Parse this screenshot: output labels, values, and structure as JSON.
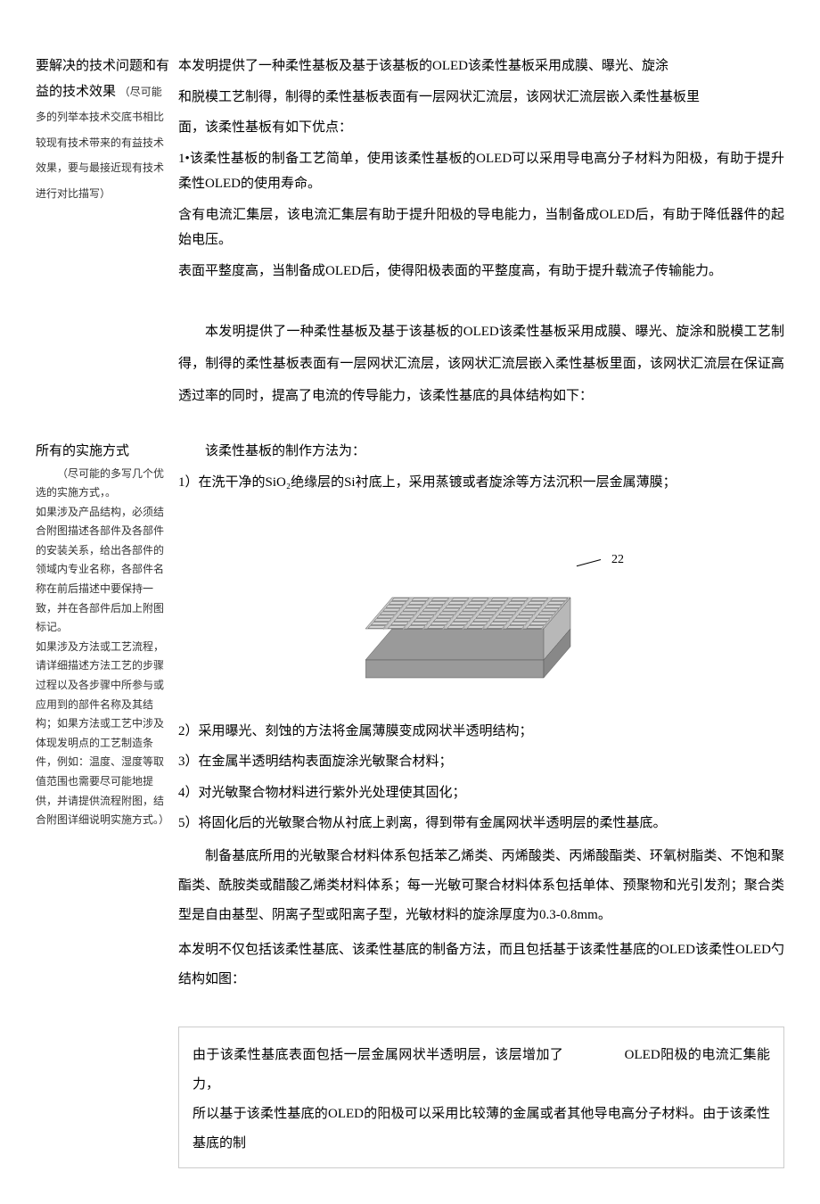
{
  "section1": {
    "label_title": "要解决的技术问题和有益的技术效果",
    "label_note": "（尽可能多的列举本技术交底书相比较现有技术带来的有益技术效果，要与最接近现有技术进行对比描写）",
    "p1": "本发明提供了一种柔性基板及基于该基板的OLED该柔性基板采用成膜、曝光、旋涂",
    "p2": "和脱模工艺制得，制得的柔性基板表面有一层网状汇流层，该网状汇流层嵌入柔性基板里",
    "p3": "面，该柔性基板有如下优点：",
    "p4": "1•该柔性基板的制备工艺简单，使用该柔性基板的OLED可以采用导电高分子材料为阳极，有助于提升柔性OLED的使用寿命。",
    "p5": "含有电流汇集层，该电流汇集层有助于提升阳极的导电能力，当制备成OLED后，有助于降低器件的起始电压。",
    "p6": "表面平整度高，当制备成OLED后，使得阳极表面的平整度高，有助于提升载流子传输能力。"
  },
  "intro": {
    "p1": "本发明提供了一种柔性基板及基于该基板的OLED该柔性基板采用成膜、曝光、旋涂和脱模工艺制得，制得的柔性基板表面有一层网状汇流层，该网状汇流层嵌入柔性基板里面，该网状汇流层在保证高透过率的同时，提高了电流的传导能力，该柔性基底的具体结构如下："
  },
  "section2": {
    "label_title": "所有的实施方式",
    "label_note": "（尽可能的多写几个优选的实施方式，。\n如果涉及产品结构，必须结合附图描述各部件及各部件的安装关系，给出各部件的领域内专业名称，各部件名称在前后描述中要保持一致，并在各部件后加上附图标记。\n如果涉及方法或工艺流程，请详细描述方法工艺的步骤过程以及各步骤中所参与或应用到的部件名称及其结构；如果方法或工艺中涉及体现发明点的工艺制造条件，例如：温度、湿度等取值范围也需要尽可能地提供，并请提供流程附图，结合附图详细说明实施方式。）",
    "p1": "该柔性基板的制作方法为：",
    "p2": "1）在洗干净的SiO₂绝缘层的Si衬底上，采用蒸镀或者旋涂等方法沉积一层金属薄膜；",
    "p3": "2）采用曝光、刻蚀的方法将金属薄膜变成网状半透明结构；",
    "p4": "3）在金属半透明结构表面旋涂光敏聚合材料；",
    "p5": "4）对光敏聚合物材料进行紫外光处理使其固化；",
    "p6": "5）将固化后的光敏聚合物从衬底上剥离，得到带有金属网状半透明层的柔性基底。",
    "p7": "制备基底所用的光敏聚合材料体系包括苯乙烯类、丙烯酸类、丙烯酸酯类、环氧树脂类、不饱和聚酯类、酰胺类或醋酸乙烯类材料体系；每一光敏可聚合材料体系包括单体、预聚物和光引发剂；聚合类型是自由基型、阴离子型或阳离子型，光敏材料的旋涂厚度为0.3-0.8mm。",
    "p8": "本发明不仅包括该柔性基底、该柔性基底的制备方法，而且包括基于该柔性基底的OLED该柔性OLED勺结构如图："
  },
  "figure": {
    "label": "22",
    "grid_size": 9,
    "top_color": "#d4d4d4",
    "line_color": "#444444",
    "side_color_light": "#b8b8b8",
    "side_color_dark": "#9a9a9a"
  },
  "bottombox": {
    "line1_a": "由于该柔性基底表面包括一层金属网状半透明层，该层增加了",
    "line1_b": "OLED阳极的电流汇集能力，",
    "line2": "所以基于该柔性基底的OLED的阳极可以采用比较薄的金属或者其他导电高分子材料。由于该柔性基底的制"
  }
}
